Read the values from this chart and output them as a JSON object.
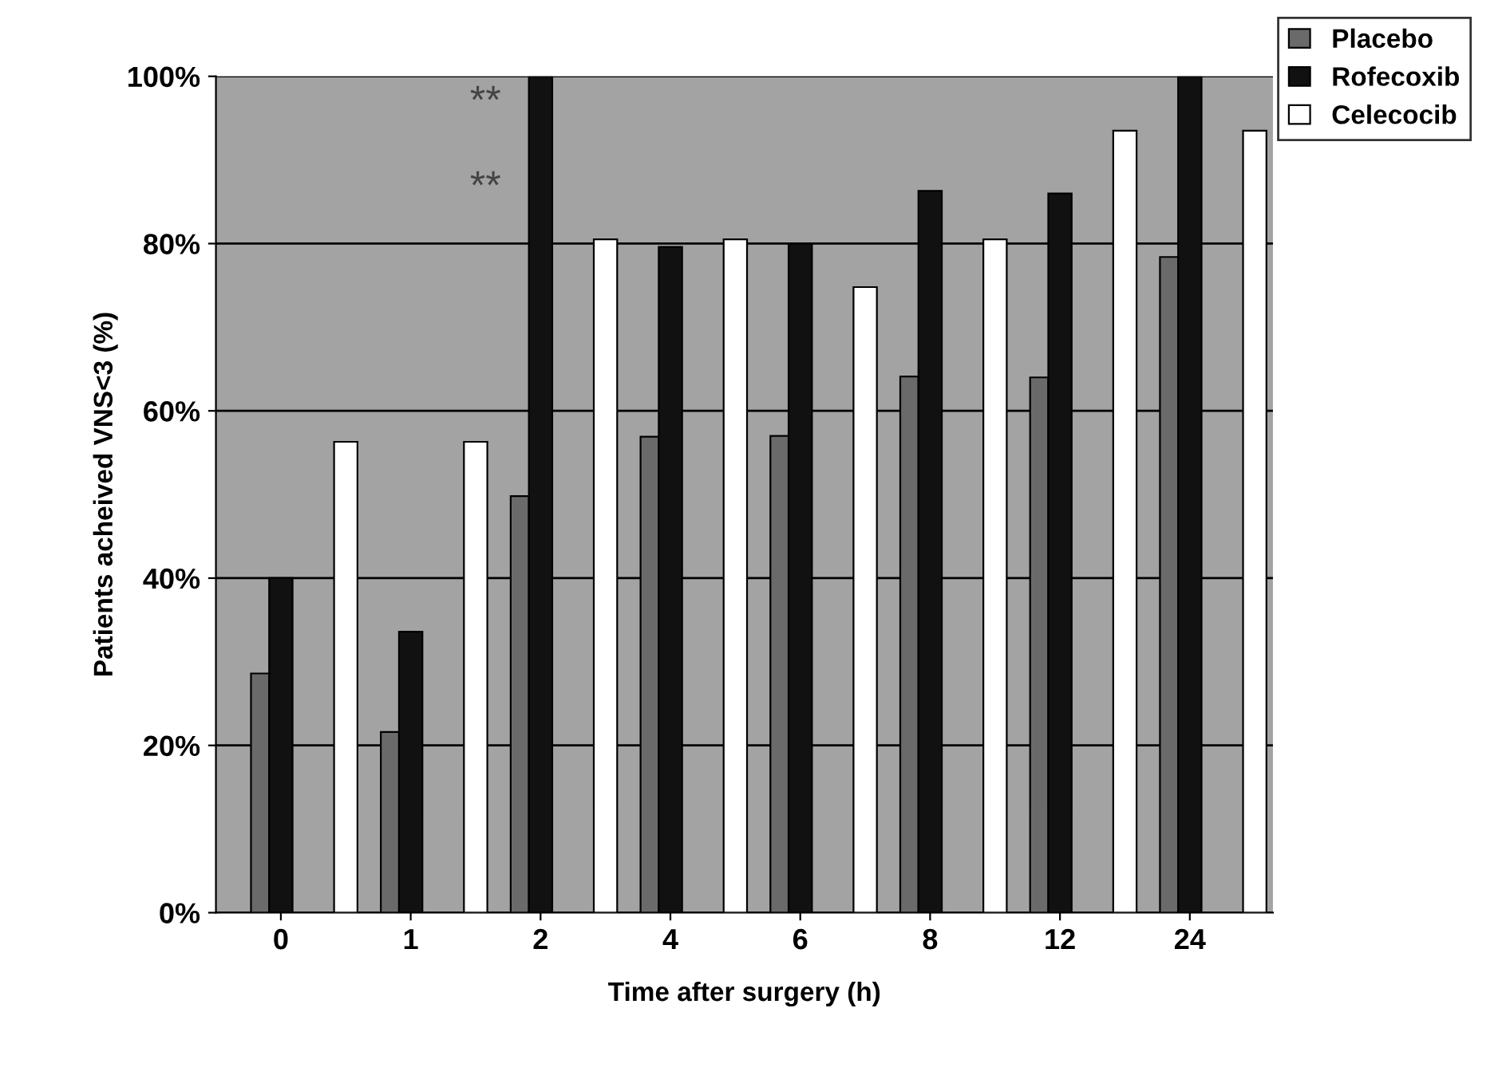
{
  "chart_data": {
    "type": "bar",
    "xlabel": "Time after surgery (h)",
    "ylabel": "Patients acheived VNS<3 (%)",
    "categories": [
      "0",
      "1",
      "2",
      "4",
      "6",
      "8",
      "12",
      "24"
    ],
    "series": [
      {
        "name": "Placebo",
        "color": "#6a6a6a",
        "values": [
          28.6,
          21.6,
          49.8,
          56.9,
          57,
          64.1,
          64,
          78.4
        ]
      },
      {
        "name": "Rofecoxib",
        "color": "#111111",
        "values": [
          40,
          33.6,
          100,
          79.6,
          80,
          86.3,
          86,
          100
        ]
      },
      {
        "name": "Celecocib",
        "color": "#ffffff",
        "values": [
          56.3,
          56.3,
          80.5,
          80.5,
          74.8,
          80.5,
          93.5,
          93.5
        ]
      }
    ],
    "ylim": [
      0,
      100
    ],
    "yticks": [
      {
        "value": 0,
        "label": "0%"
      },
      {
        "value": 20,
        "label": "20%"
      },
      {
        "value": 40,
        "label": "40%"
      },
      {
        "value": 60,
        "label": "60%"
      },
      {
        "value": 80,
        "label": "80%"
      },
      {
        "value": 100,
        "label": "100%"
      }
    ],
    "grid": "y",
    "legend": "top right",
    "annotations": [
      "**",
      "**"
    ]
  }
}
